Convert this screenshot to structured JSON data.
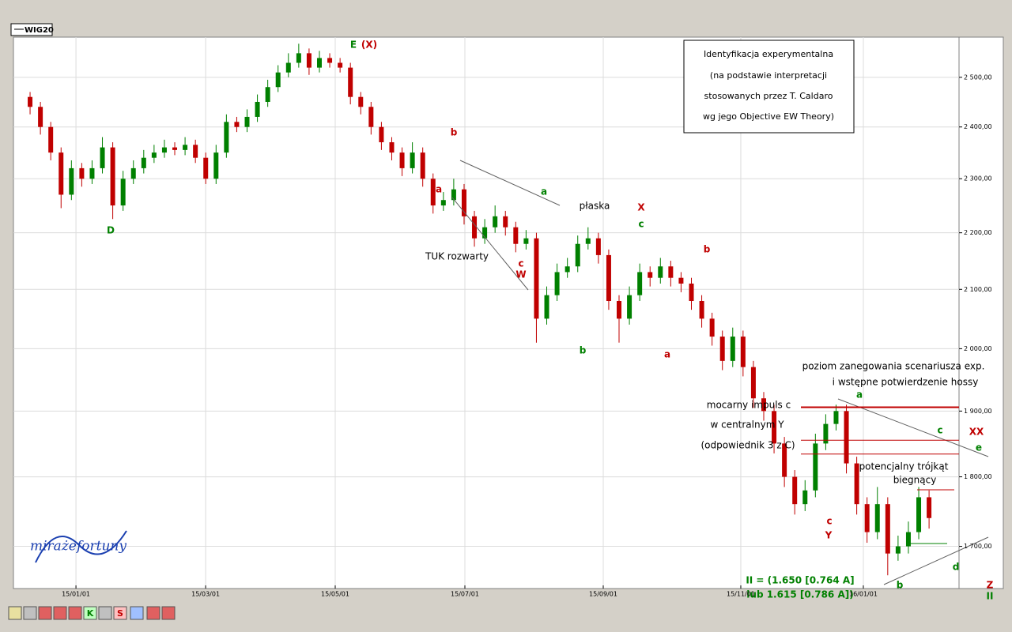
{
  "chart_data": {
    "type": "candlestick",
    "legend": "WIG20",
    "logo": [
      "miraże",
      "fortuny"
    ],
    "info_box": [
      "Identyfikacja experymentalna",
      "(na podstawie interpretacji",
      "stosowanych przez T. Caldaro",
      "wg jego Objective EW Theory)"
    ],
    "toolbar": [
      "K",
      "S"
    ],
    "log_scale": true,
    "grid": true,
    "up_color": "#008000",
    "down_color": "#c00000",
    "ylim": [
      1642,
      2584
    ],
    "yticks": [
      {
        "value": 1700,
        "label": "1 700,00"
      },
      {
        "value": 1800,
        "label": "1 800,00"
      },
      {
        "value": 1900,
        "label": "1 900,00"
      },
      {
        "value": 2000,
        "label": "2 000,00"
      },
      {
        "value": 2100,
        "label": "2 100,00"
      },
      {
        "value": 2200,
        "label": "2 200,00"
      },
      {
        "value": 2300,
        "label": "2 300,00"
      },
      {
        "value": 2400,
        "label": "2 400,00"
      },
      {
        "value": 2500,
        "label": "2 500,00"
      }
    ],
    "xlim": [
      -1.61,
      89.9
    ],
    "xticks": [
      {
        "value": 4.44,
        "label": "15/01/01"
      },
      {
        "value": 16.99,
        "label": "15/03/01"
      },
      {
        "value": 29.53,
        "label": "15/05/01"
      },
      {
        "value": 42.08,
        "label": "15/07/01"
      },
      {
        "value": 55.47,
        "label": "15/09/01"
      },
      {
        "value": 68.78,
        "label": "15/11/01"
      },
      {
        "value": 80.64,
        "label": "16/01/01"
      }
    ],
    "levels": [
      {
        "value": 1906,
        "color": "#c00000"
      },
      {
        "value": 1855,
        "color": "#c00000"
      },
      {
        "value": 1834,
        "color": "#c00000"
      }
    ],
    "candles": [
      [
        2460,
        2470,
        2425,
        2440
      ],
      [
        2440,
        2450,
        2385,
        2400
      ],
      [
        2400,
        2410,
        2335,
        2350
      ],
      [
        2350,
        2360,
        2245,
        2270
      ],
      [
        2270,
        2335,
        2260,
        2320
      ],
      [
        2320,
        2330,
        2285,
        2300
      ],
      [
        2300,
        2335,
        2290,
        2320
      ],
      [
        2320,
        2380,
        2310,
        2360
      ],
      [
        2360,
        2370,
        2225,
        2250
      ],
      [
        2250,
        2315,
        2240,
        2300
      ],
      [
        2300,
        2335,
        2290,
        2320
      ],
      [
        2320,
        2355,
        2310,
        2340
      ],
      [
        2340,
        2365,
        2330,
        2350
      ],
      [
        2350,
        2375,
        2340,
        2360
      ],
      [
        2360,
        2370,
        2345,
        2355
      ],
      [
        2355,
        2380,
        2345,
        2365
      ],
      [
        2365,
        2375,
        2330,
        2340
      ],
      [
        2340,
        2350,
        2290,
        2300
      ],
      [
        2300,
        2365,
        2290,
        2350
      ],
      [
        2350,
        2425,
        2340,
        2410
      ],
      [
        2410,
        2420,
        2390,
        2400
      ],
      [
        2400,
        2435,
        2390,
        2420
      ],
      [
        2420,
        2465,
        2410,
        2450
      ],
      [
        2450,
        2495,
        2440,
        2480
      ],
      [
        2480,
        2525,
        2470,
        2510
      ],
      [
        2510,
        2550,
        2500,
        2530
      ],
      [
        2530,
        2570,
        2520,
        2550
      ],
      [
        2550,
        2560,
        2505,
        2520
      ],
      [
        2520,
        2555,
        2510,
        2540
      ],
      [
        2540,
        2550,
        2520,
        2530
      ],
      [
        2530,
        2540,
        2510,
        2520
      ],
      [
        2520,
        2530,
        2445,
        2460
      ],
      [
        2460,
        2470,
        2425,
        2440
      ],
      [
        2440,
        2450,
        2385,
        2400
      ],
      [
        2400,
        2410,
        2355,
        2370
      ],
      [
        2370,
        2380,
        2335,
        2350
      ],
      [
        2350,
        2360,
        2305,
        2320
      ],
      [
        2320,
        2370,
        2310,
        2350
      ],
      [
        2350,
        2360,
        2285,
        2300
      ],
      [
        2300,
        2310,
        2235,
        2250
      ],
      [
        2250,
        2275,
        2240,
        2260
      ],
      [
        2260,
        2300,
        2250,
        2280
      ],
      [
        2280,
        2290,
        2215,
        2230
      ],
      [
        2230,
        2240,
        2175,
        2190
      ],
      [
        2190,
        2225,
        2180,
        2210
      ],
      [
        2210,
        2250,
        2200,
        2230
      ],
      [
        2230,
        2240,
        2195,
        2210
      ],
      [
        2210,
        2220,
        2165,
        2180
      ],
      [
        2180,
        2205,
        2170,
        2190
      ],
      [
        2190,
        2200,
        2010,
        2050
      ],
      [
        2050,
        2105,
        2040,
        2090
      ],
      [
        2090,
        2145,
        2080,
        2130
      ],
      [
        2130,
        2155,
        2120,
        2140
      ],
      [
        2140,
        2195,
        2130,
        2180
      ],
      [
        2180,
        2210,
        2170,
        2190
      ],
      [
        2190,
        2200,
        2145,
        2160
      ],
      [
        2160,
        2170,
        2065,
        2080
      ],
      [
        2080,
        2090,
        2010,
        2050
      ],
      [
        2050,
        2105,
        2040,
        2090
      ],
      [
        2090,
        2145,
        2080,
        2130
      ],
      [
        2130,
        2140,
        2105,
        2120
      ],
      [
        2120,
        2155,
        2110,
        2140
      ],
      [
        2140,
        2150,
        2105,
        2120
      ],
      [
        2120,
        2130,
        2095,
        2110
      ],
      [
        2110,
        2120,
        2065,
        2080
      ],
      [
        2080,
        2090,
        2035,
        2050
      ],
      [
        2050,
        2060,
        2005,
        2020
      ],
      [
        2020,
        2030,
        1965,
        1980
      ],
      [
        1980,
        2035,
        1970,
        2020
      ],
      [
        2020,
        2030,
        1955,
        1970
      ],
      [
        1970,
        1980,
        1905,
        1920
      ],
      [
        1920,
        1930,
        1885,
        1900
      ],
      [
        1900,
        1910,
        1835,
        1850
      ],
      [
        1850,
        1860,
        1785,
        1800
      ],
      [
        1800,
        1810,
        1745,
        1760
      ],
      [
        1760,
        1795,
        1750,
        1780
      ],
      [
        1780,
        1865,
        1770,
        1850
      ],
      [
        1850,
        1895,
        1840,
        1880
      ],
      [
        1880,
        1910,
        1870,
        1900
      ],
      [
        1900,
        1910,
        1805,
        1820
      ],
      [
        1820,
        1830,
        1745,
        1760
      ],
      [
        1760,
        1770,
        1705,
        1720
      ],
      [
        1720,
        1785,
        1710,
        1760
      ],
      [
        1760,
        1770,
        1660,
        1690
      ],
      [
        1690,
        1715,
        1680,
        1700
      ],
      [
        1700,
        1735,
        1690,
        1720
      ],
      [
        1720,
        1785,
        1710,
        1770
      ],
      [
        1770,
        1780,
        1725,
        1740
      ]
    ],
    "annotations": [
      {
        "text": "D",
        "color": "#008000"
      },
      {
        "text": "E",
        "color": "#008000"
      },
      {
        "text": "(X)",
        "color": "#c00000"
      },
      {
        "text": "b",
        "color": "#c00000"
      },
      {
        "text": "a",
        "color": "#c00000"
      },
      {
        "text": "a",
        "color": "#008000"
      },
      {
        "text": "płaska",
        "color": "#000000"
      },
      {
        "text": "TUK rozwarty",
        "color": "#000000"
      },
      {
        "text": "c",
        "color": "#c00000"
      },
      {
        "text": "W",
        "color": "#c00000"
      },
      {
        "text": "X",
        "color": "#c00000"
      },
      {
        "text": "c",
        "color": "#008000"
      },
      {
        "text": "b",
        "color": "#008000"
      },
      {
        "text": "b",
        "color": "#c00000"
      },
      {
        "text": "a",
        "color": "#c00000"
      },
      {
        "text": "poziom zanegowania scenariusza exp.",
        "color": "#000000"
      },
      {
        "text": "i wstępne potwierdzenie hossy",
        "color": "#000000"
      },
      {
        "text": "a",
        "color": "#008000"
      },
      {
        "text": "mocarny impuls c",
        "color": "#000000"
      },
      {
        "text": "w centralnym Y",
        "color": "#000000"
      },
      {
        "text": "(odpowiednik 3 z C)",
        "color": "#000000"
      },
      {
        "text": "c",
        "color": "#008000"
      },
      {
        "text": "XX",
        "color": "#c00000"
      },
      {
        "text": "e",
        "color": "#008000"
      },
      {
        "text": "potencjalny trójkąt",
        "color": "#000000"
      },
      {
        "text": "biegnący",
        "color": "#000000"
      },
      {
        "text": "c",
        "color": "#c00000"
      },
      {
        "text": "Y",
        "color": "#c00000"
      },
      {
        "text": "d",
        "color": "#008000"
      },
      {
        "text": "b",
        "color": "#008000"
      },
      {
        "text": "II = (1.650 [0.764 A]",
        "color": "#008000"
      },
      {
        "text": "lub 1.615 [0.786 A])",
        "color": "#008000"
      },
      {
        "text": "Z",
        "color": "#c00000"
      },
      {
        "text": "II",
        "color": "#008000"
      }
    ]
  }
}
